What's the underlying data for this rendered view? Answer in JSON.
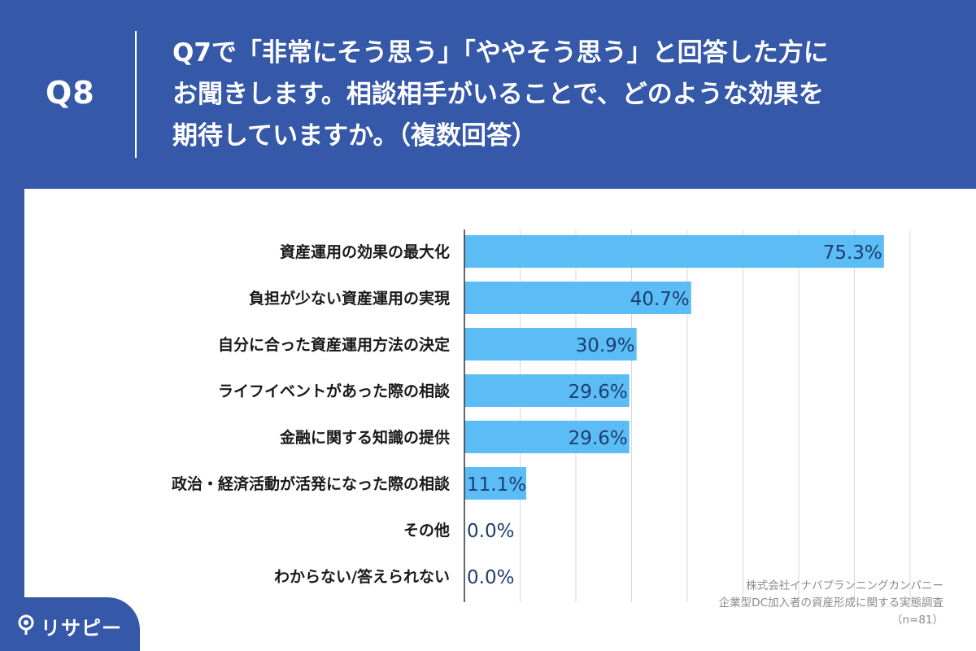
{
  "header": {
    "qnum": "Q8",
    "lines": [
      "Q7で「非常にそう思う」「ややそう思う」と回答した方に",
      "お聞きします。相談相手がいることで、どのような効果を",
      "期待していますか。（複数回答）"
    ]
  },
  "chart_data": {
    "type": "bar",
    "orientation": "horizontal",
    "categories": [
      "資産運用の効果の最大化",
      "負担が少ない資産運用の実現",
      "自分に合った資産運用方法の決定",
      "ライフイベントがあった際の相談",
      "金融に関する知識の提供",
      "政治・経済活動が活発になった際の相談",
      "その他",
      "わからない/答えられない"
    ],
    "values": [
      75.3,
      40.7,
      30.9,
      29.6,
      29.6,
      11.1,
      0.0,
      0.0
    ],
    "value_labels": [
      "75.3%",
      "40.7%",
      "30.9%",
      "29.6%",
      "29.6%",
      "11.1%",
      "0.0%",
      "0.0%"
    ],
    "xlim": [
      0,
      80
    ],
    "grid": true,
    "bar_color": "#5bbcf6"
  },
  "source": {
    "company": "株式会社イナバプランニングカンパニー",
    "survey": "企業型DC加入者の資産形成に関する実態調査",
    "sample": "（n=81）"
  },
  "logo": {
    "text": "リサピー",
    "icon": "pin-icon"
  }
}
